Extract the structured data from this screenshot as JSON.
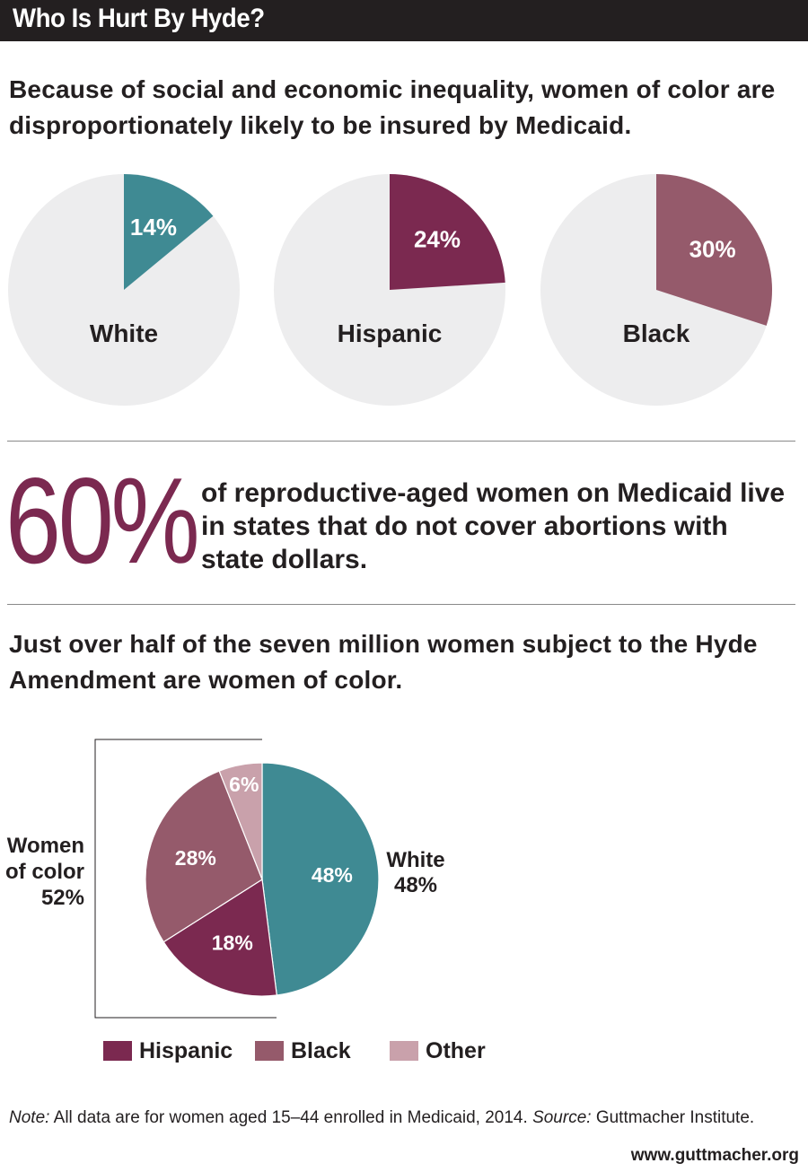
{
  "title": "Who Is Hurt By Hyde?",
  "headline1": "Because of social and economic inequality, women of color are disproportionately likely to be insured by Medicaid.",
  "stat": {
    "value": "60%",
    "text": "of reproductive-aged women on Medicaid live in states that do not cover abortions with state dollars."
  },
  "headline2": "Just over half of the seven million women subject to the Hyde Amendment are women of color.",
  "chart_data": [
    {
      "type": "pie",
      "pies": [
        {
          "label": "White",
          "value": 14,
          "value_label": "14%",
          "color": "#3f8a93"
        },
        {
          "label": "Hispanic",
          "value": 24,
          "value_label": "24%",
          "color": "#7b2950"
        },
        {
          "label": "Black",
          "value": 30,
          "value_label": "30%",
          "color": "#955a6b"
        }
      ],
      "remainder_color": "#ededee"
    },
    {
      "type": "pie",
      "slices": [
        {
          "name": "White",
          "value": 48,
          "label": "48%",
          "color": "#3f8a93"
        },
        {
          "name": "Hispanic",
          "value": 18,
          "label": "18%",
          "color": "#7b2950"
        },
        {
          "name": "Black",
          "value": 28,
          "label": "28%",
          "color": "#955a6b"
        },
        {
          "name": "Other",
          "value": 6,
          "label": "6%",
          "color": "#c9a1ab"
        }
      ],
      "outside_labels": {
        "white": [
          "White",
          "48%"
        ],
        "women_of_color": [
          "Women",
          "of color",
          "52%"
        ]
      },
      "legend": [
        {
          "label": "Hispanic",
          "color": "#7b2950"
        },
        {
          "label": "Black",
          "color": "#955a6b"
        },
        {
          "label": "Other",
          "color": "#c9a1ab"
        }
      ],
      "legend_position": "bottom"
    }
  ],
  "note": {
    "note_label": "Note:",
    "note_text": " All data are for women aged 15–44 enrolled in Medicaid, 2014. ",
    "source_label": "Source:",
    "source_text": " Guttmacher Institute."
  },
  "website": "www.guttmacher.org"
}
